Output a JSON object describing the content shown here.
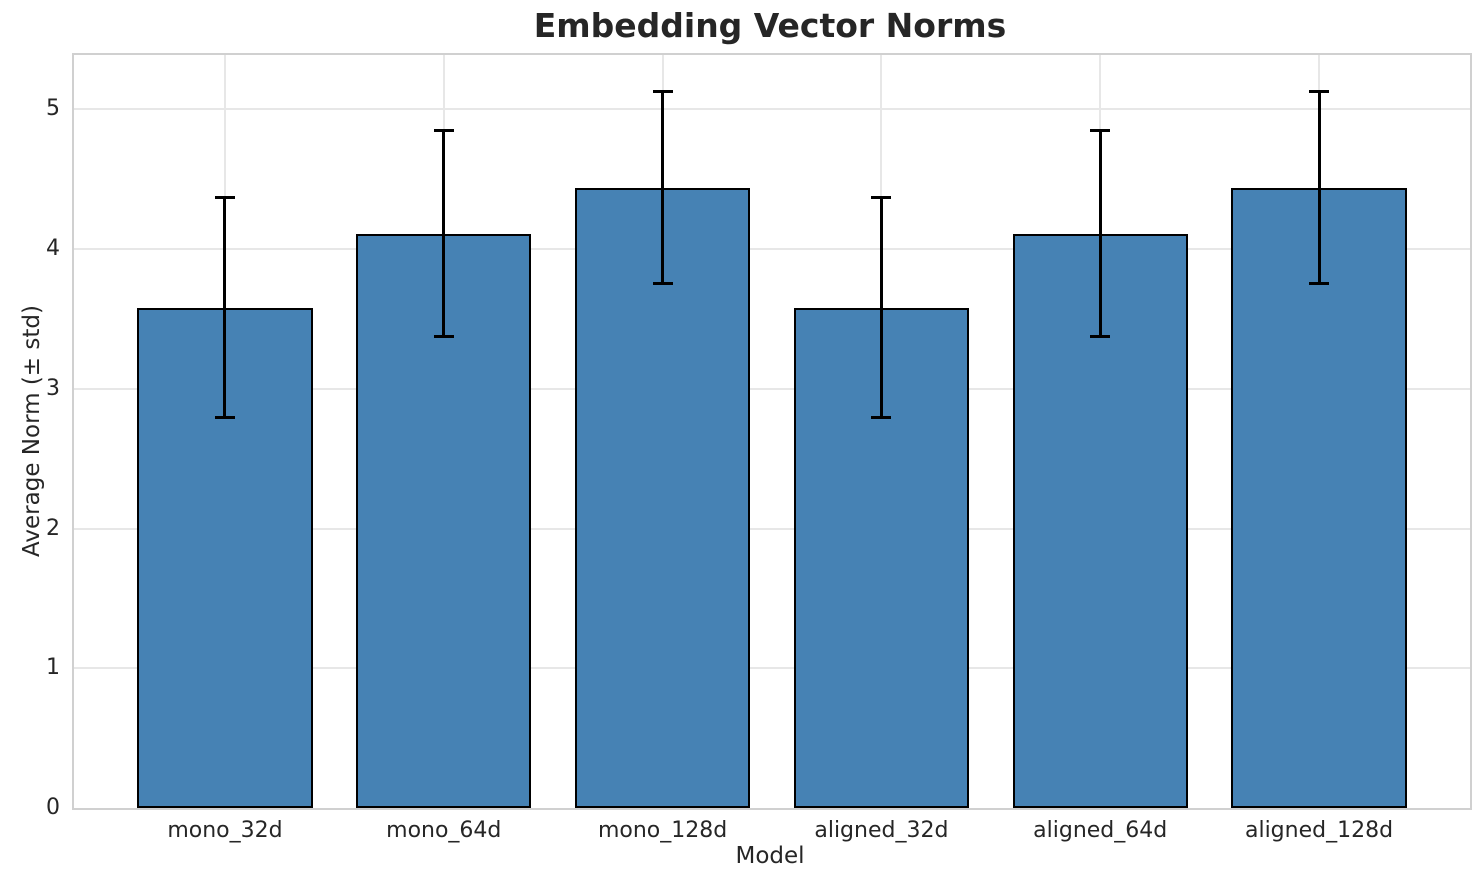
{
  "chart_data": {
    "type": "bar",
    "title": "Embedding Vector Norms",
    "xlabel": "Model",
    "ylabel": "Average Norm (± std)",
    "categories": [
      "mono_32d",
      "mono_64d",
      "mono_128d",
      "aligned_32d",
      "aligned_64d",
      "aligned_128d"
    ],
    "values": [
      3.58,
      4.11,
      4.44,
      3.58,
      4.11,
      4.44
    ],
    "errors": [
      0.79,
      0.74,
      0.69,
      0.79,
      0.74,
      0.69
    ],
    "yticks": [
      0,
      1,
      2,
      3,
      4,
      5
    ],
    "ylim": [
      0,
      5.39
    ],
    "grid": true,
    "legend_position": "none",
    "bar_color": "#4682B4",
    "bar_edge_color": "#000000",
    "error_color": "#000000",
    "grid_color": "#e7e7e7",
    "spine_color": "#d0d0d0",
    "text_color": "#262626"
  }
}
